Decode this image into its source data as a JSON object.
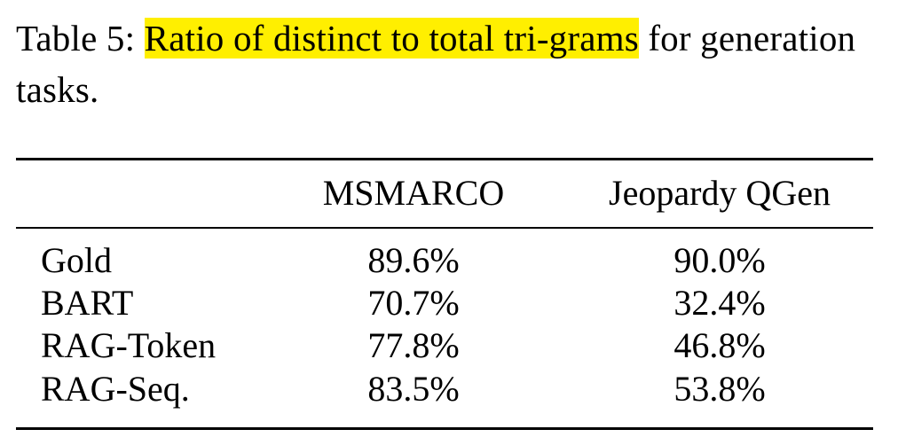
{
  "caption": {
    "label": "Table 5:",
    "highlighted": "Ratio of distinct to total tri-grams",
    "rest": "for generation tasks."
  },
  "table": {
    "columns": [
      "MSMARCO",
      "Jeopardy QGen"
    ],
    "rows": [
      {
        "name": "Gold",
        "values": [
          "89.6%",
          "90.0%"
        ]
      },
      {
        "name": "BART",
        "values": [
          "70.7%",
          "32.4%"
        ]
      },
      {
        "name": "RAG-Token",
        "values": [
          "77.8%",
          "46.8%"
        ]
      },
      {
        "name": "RAG-Seq.",
        "values": [
          "83.5%",
          "53.8%"
        ]
      }
    ]
  },
  "colors": {
    "highlight": "#ffef00",
    "text": "#000000"
  }
}
